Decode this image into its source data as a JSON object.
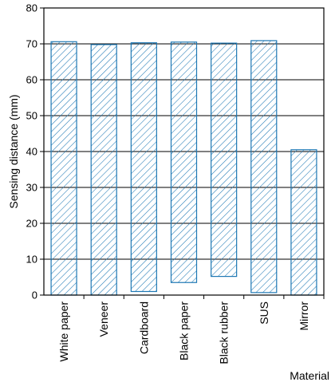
{
  "chart_data": {
    "type": "bar",
    "title": "",
    "xlabel": "Material",
    "ylabel": "Sensing distance (mm)",
    "categories": [
      "White paper",
      "Veneer",
      "Cardboard",
      "Black paper",
      "Black rubber",
      "SUS",
      "Mirror"
    ],
    "series": [
      {
        "low": [
          0,
          0,
          1,
          3.5,
          5.2,
          0.7,
          0
        ],
        "values": [
          70.6,
          69.8,
          70.3,
          70.5,
          70.2,
          70.9,
          40.5
        ]
      }
    ],
    "ylim": [
      0,
      80
    ],
    "yticks": [
      0,
      10,
      20,
      30,
      40,
      50,
      60,
      70,
      80
    ],
    "grid": true,
    "colors": {
      "bar_stroke": "#1e78b4",
      "bar_hatch": "#1e78b4",
      "bar_fill": "#ffffff",
      "grid": "#000000"
    }
  }
}
